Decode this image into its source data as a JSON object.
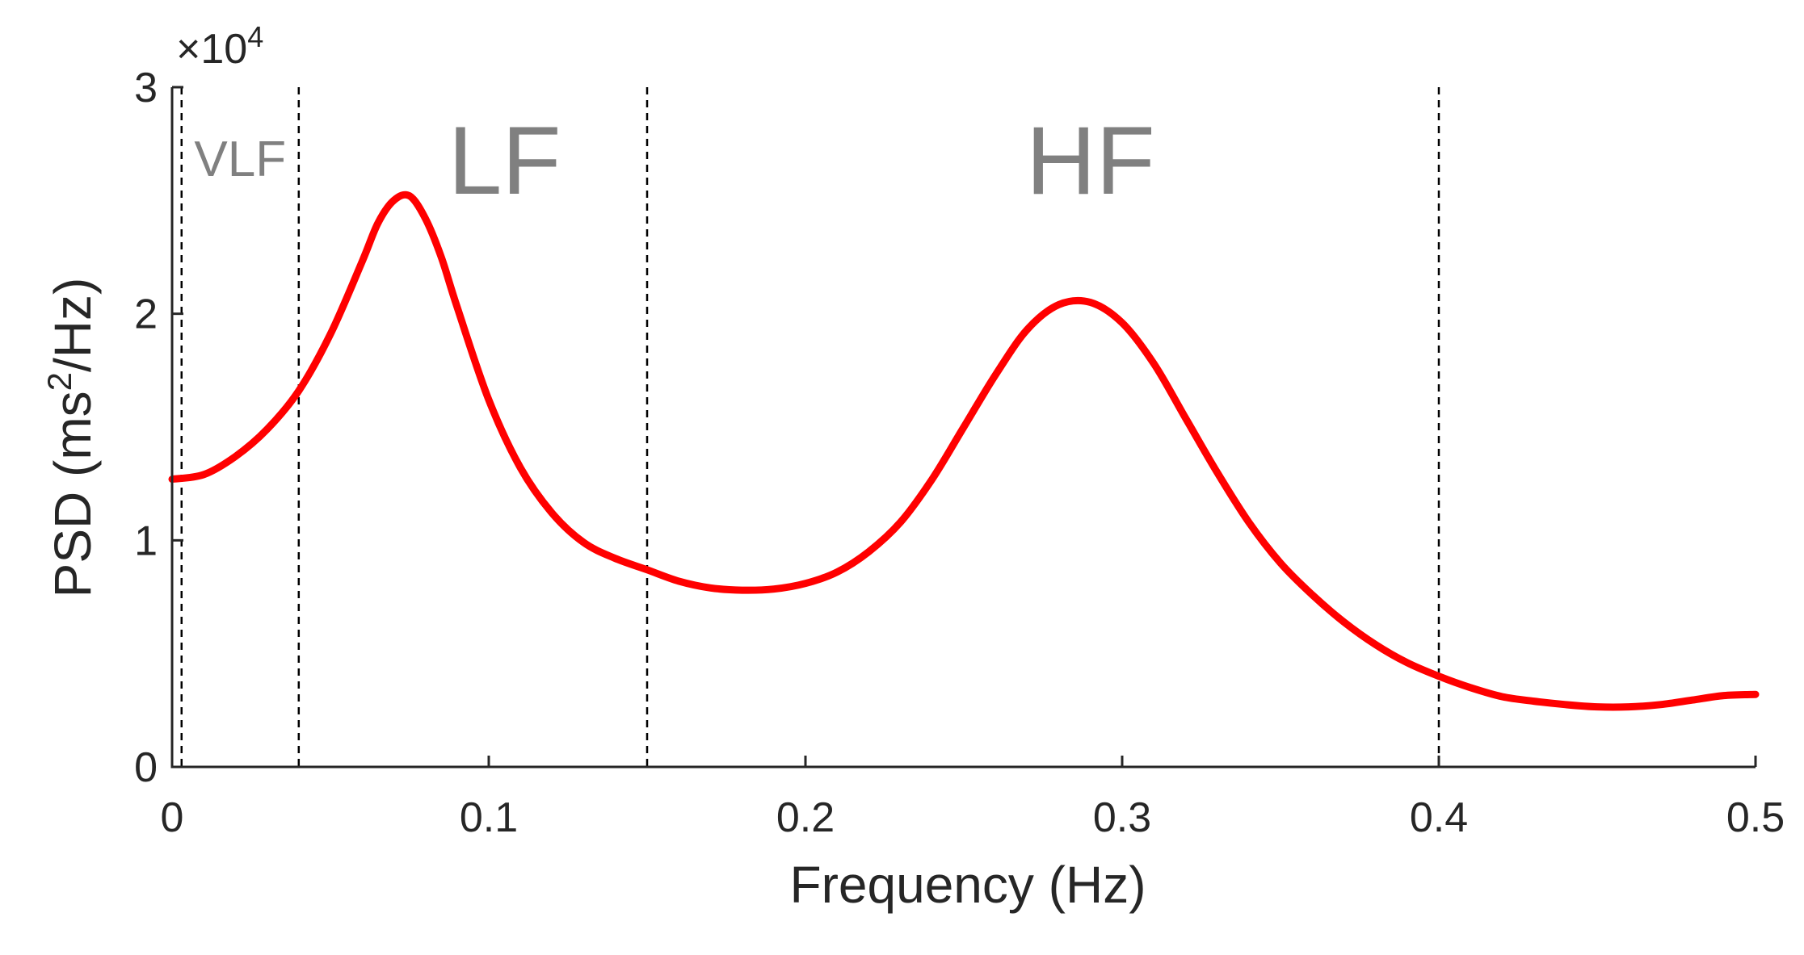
{
  "chart_data": {
    "type": "line",
    "xlabel": "Frequency (Hz)",
    "ylabel_prefix": "PSD (ms",
    "ylabel_sup": "2",
    "ylabel_suffix": "/Hz)",
    "y_multiplier_base": "×10",
    "y_multiplier_exp": "4",
    "xlim": [
      0,
      0.5
    ],
    "ylim": [
      0,
      30000
    ],
    "x_ticks": [
      0,
      0.1,
      0.2,
      0.3,
      0.4,
      0.5
    ],
    "x_tick_labels": [
      "0",
      "0.1",
      "0.2",
      "0.3",
      "0.4",
      "0.5"
    ],
    "y_ticks": [
      0,
      10000,
      20000,
      30000
    ],
    "y_tick_labels": [
      "0",
      "1",
      "2",
      "3"
    ],
    "grid": false,
    "line_color": "#ff0000",
    "divider_color": "#000000",
    "band_label_color": "#808080",
    "band_dividers": [
      0.003,
      0.04,
      0.15,
      0.4
    ],
    "bands": [
      {
        "label": "VLF",
        "x_center": 0.0215
      },
      {
        "label": "LF",
        "x_center": 0.105
      },
      {
        "label": "HF",
        "x_center": 0.29
      }
    ],
    "series": [
      {
        "x": [
          0,
          0.01,
          0.02,
          0.03,
          0.04,
          0.05,
          0.06,
          0.065,
          0.07,
          0.075,
          0.08,
          0.085,
          0.09,
          0.1,
          0.11,
          0.12,
          0.13,
          0.14,
          0.15,
          0.16,
          0.17,
          0.18,
          0.19,
          0.2,
          0.21,
          0.22,
          0.23,
          0.24,
          0.25,
          0.26,
          0.27,
          0.28,
          0.29,
          0.3,
          0.31,
          0.32,
          0.33,
          0.34,
          0.35,
          0.36,
          0.37,
          0.38,
          0.39,
          0.4,
          0.41,
          0.42,
          0.43,
          0.44,
          0.45,
          0.46,
          0.47,
          0.48,
          0.49,
          0.5
        ],
        "values": [
          12700,
          12900,
          13700,
          14900,
          16600,
          19100,
          22300,
          24000,
          25000,
          25200,
          24200,
          22500,
          20300,
          16200,
          13200,
          11200,
          9900,
          9200,
          8700,
          8200,
          7900,
          7800,
          7850,
          8100,
          8600,
          9500,
          10800,
          12700,
          15000,
          17300,
          19300,
          20400,
          20500,
          19600,
          17800,
          15400,
          13000,
          10800,
          9000,
          7600,
          6400,
          5400,
          4600,
          4000,
          3500,
          3100,
          2900,
          2750,
          2650,
          2650,
          2750,
          2950,
          3150,
          3200
        ]
      }
    ]
  }
}
